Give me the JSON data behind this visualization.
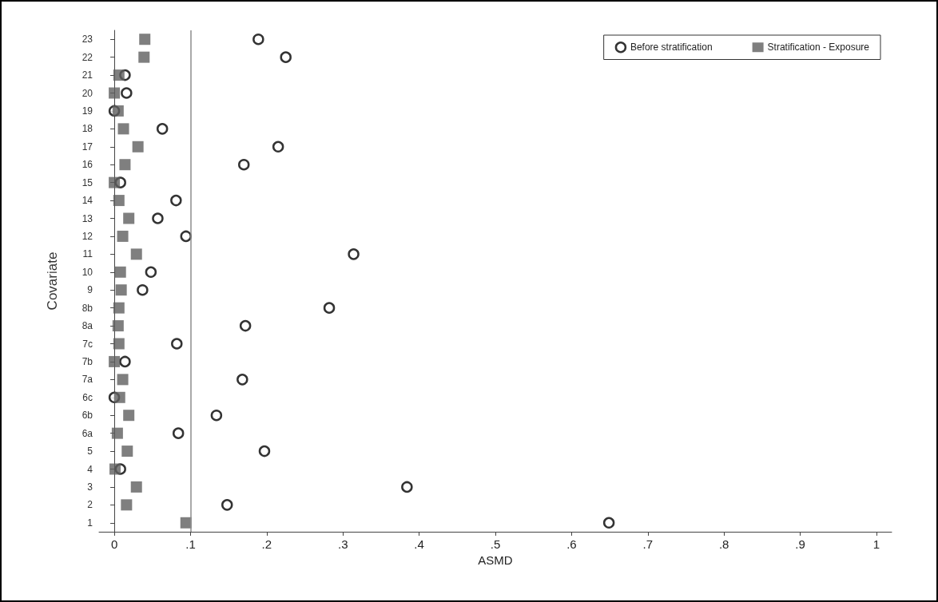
{
  "chart_data": {
    "type": "scatter",
    "orientation": "horizontal",
    "xlabel": "ASMD",
    "ylabel": "Covariate",
    "categories": [
      "23",
      "22",
      "21",
      "20",
      "19",
      "18",
      "17",
      "16",
      "15",
      "14",
      "13",
      "12",
      "11",
      "10",
      "9",
      "8b",
      "8a",
      "7c",
      "7b",
      "7a",
      "6c",
      "6b",
      "6a",
      "5",
      "4",
      "3",
      "2",
      "1"
    ],
    "series": [
      {
        "name": "Before stratification",
        "color": "#000000",
        "marker": "circle",
        "values": [
          0.189,
          0.225,
          0.014,
          0.016,
          0.0,
          0.063,
          0.215,
          0.17,
          0.008,
          0.081,
          0.057,
          0.094,
          0.314,
          0.048,
          0.037,
          0.282,
          0.172,
          0.082,
          0.014,
          0.168,
          0.0,
          0.134,
          0.084,
          0.197,
          0.008,
          0.384,
          0.148,
          0.649
        ]
      },
      {
        "name": "Stratification - Exposure",
        "color": "#5f5f5f",
        "marker": "square",
        "values": [
          0.04,
          0.039,
          0.006,
          0.0,
          0.005,
          0.012,
          0.031,
          0.014,
          0.0,
          0.006,
          0.019,
          0.011,
          0.029,
          0.008,
          0.009,
          0.006,
          0.005,
          0.006,
          0.0,
          0.011,
          0.007,
          0.019,
          0.004,
          0.017,
          0.001,
          0.029,
          0.016,
          0.094
        ]
      }
    ],
    "xlim": [
      -0.02,
      1.02
    ],
    "xticks": [
      0,
      {
        "value": 0.1,
        "label": ".1"
      },
      {
        "value": 0.2,
        "label": ".2"
      },
      {
        "value": 0.3,
        "label": ".3"
      },
      {
        "value": 0.4,
        "label": ".4"
      },
      {
        "value": 0.5,
        "label": ".5"
      },
      {
        "value": 0.6,
        "label": ".6"
      },
      {
        "value": 0.7,
        "label": ".7"
      },
      {
        "value": 0.8,
        "label": ".8"
      },
      {
        "value": 0.9,
        "label": ".9"
      },
      1
    ],
    "ref_lines": [
      {
        "axis": "x",
        "value": 0.1,
        "color": "#8c8c8c"
      }
    ],
    "grid": false,
    "legend": "top right"
  }
}
